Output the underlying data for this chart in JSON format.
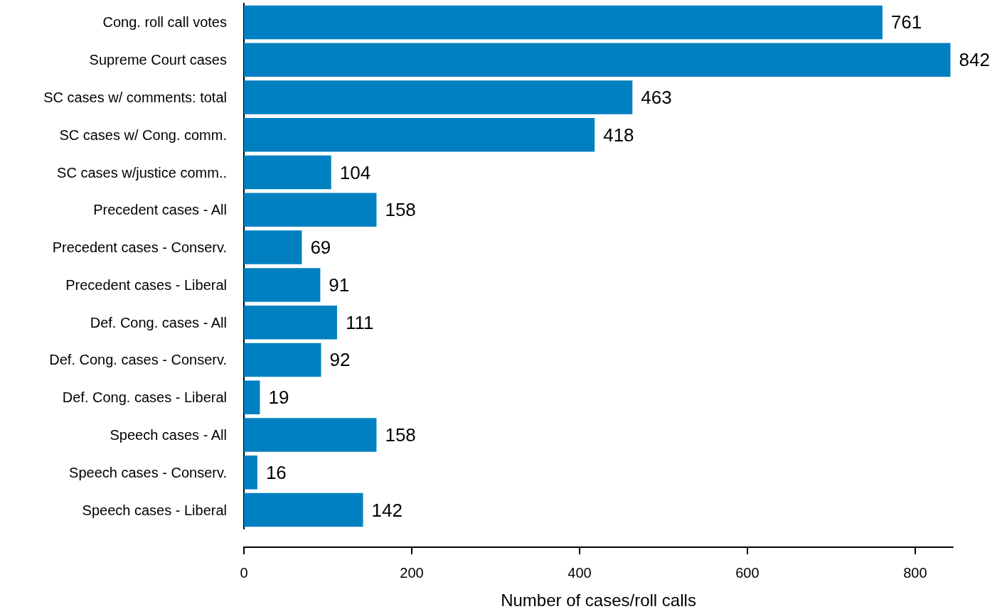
{
  "chart_data": {
    "type": "bar",
    "orientation": "horizontal",
    "xlabel": "Number of cases/roll calls",
    "categories": [
      "Cong. roll call votes",
      "Supreme Court cases",
      "SC cases w/ comments: total",
      "SC cases w/ Cong. comm.",
      "SC cases w/justice comm..",
      "Precedent cases - All",
      "Precedent cases - Conserv.",
      "Precedent cases - Liberal",
      "Def. Cong. cases - All",
      "Def. Cong. cases - Conserv.",
      "Def. Cong. cases - Liberal",
      "Speech cases - All",
      "Speech cases - Conserv.",
      "Speech cases - Liberal"
    ],
    "values": [
      761,
      842,
      463,
      418,
      104,
      158,
      69,
      91,
      111,
      92,
      19,
      158,
      16,
      142
    ],
    "color": "#0080c0",
    "data_labels": true,
    "grid": false,
    "xlim": [
      0,
      845
    ],
    "xticks": [
      0,
      200,
      400,
      600,
      800
    ]
  }
}
